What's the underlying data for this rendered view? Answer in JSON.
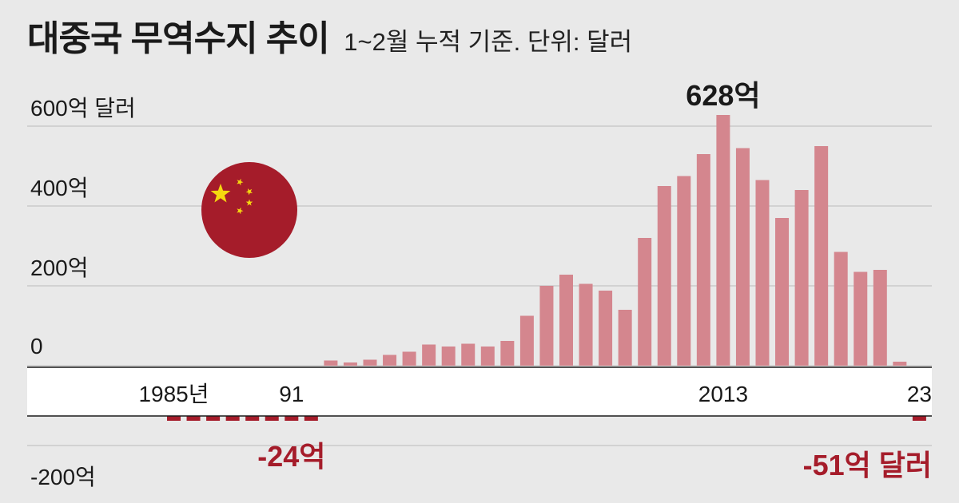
{
  "header": {
    "title": "대중국 무역수지 추이",
    "subtitle": "1~2월 누적 기준. 단위: 달러"
  },
  "chart_data": {
    "type": "bar",
    "title": "대중국 무역수지 추이",
    "subtitle": "1~2월 누적 기준. 단위: 달러",
    "x": [
      1985,
      1986,
      1987,
      1988,
      1989,
      1990,
      1991,
      1992,
      1993,
      1994,
      1995,
      1996,
      1997,
      1998,
      1999,
      2000,
      2001,
      2002,
      2003,
      2004,
      2005,
      2006,
      2007,
      2008,
      2009,
      2010,
      2011,
      2012,
      2013,
      2014,
      2015,
      2016,
      2017,
      2018,
      2019,
      2020,
      2021,
      2022,
      2023
    ],
    "values": [
      -10,
      -10,
      -10,
      -10,
      -10,
      -10,
      -24,
      -10,
      13,
      8,
      15,
      27,
      35,
      53,
      48,
      55,
      48,
      62,
      125,
      200,
      228,
      205,
      188,
      140,
      320,
      450,
      475,
      530,
      628,
      545,
      465,
      370,
      440,
      550,
      285,
      235,
      240,
      10,
      -51
    ],
    "unit": "억 달러",
    "ylim": [
      -200,
      600
    ],
    "yticks": [
      {
        "value": 600,
        "label": "600억 달러"
      },
      {
        "value": 400,
        "label": "400억"
      },
      {
        "value": 200,
        "label": "200억"
      },
      {
        "value": 0,
        "label": "0"
      },
      {
        "value": -200,
        "label": "-200억"
      }
    ],
    "xtick_labels": [
      {
        "x": 1985,
        "label": "1985년"
      },
      {
        "x": 1991,
        "label": "91"
      },
      {
        "x": 2013,
        "label": "2013"
      },
      {
        "x": 2023,
        "label": "23"
      }
    ],
    "annotations": [
      {
        "x": 2013,
        "label": "628억"
      },
      {
        "x": 1991,
        "label": "-24억"
      },
      {
        "x": 2023,
        "label": "-51억 달러"
      }
    ],
    "grid": true,
    "colors": {
      "positive": "#d4868e",
      "negative": "#a51c2a",
      "annotation_negative": "#a51c2a",
      "band": "#ffffff"
    }
  },
  "flag": {
    "icon": "china-flag-icon",
    "color": "#a51c2a",
    "star_color": "#f5d80f"
  }
}
